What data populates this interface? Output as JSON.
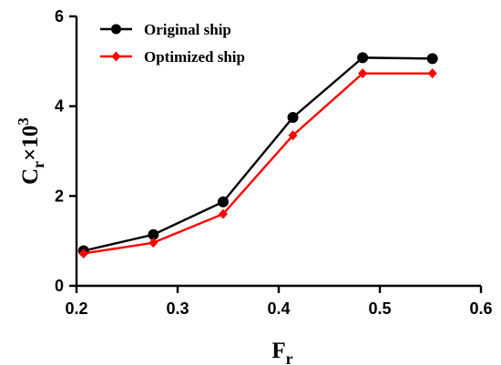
{
  "chart_data": {
    "type": "line",
    "xlabel": "F",
    "xlabel_sub": "r",
    "ylabel": "C",
    "ylabel_sub": "r",
    "ylabel_suffix": "×10",
    "ylabel_sup": "3",
    "xlim": [
      0.2,
      0.6
    ],
    "ylim": [
      0,
      6
    ],
    "xticks": [
      "0.2",
      "0.3",
      "0.4",
      "0.5",
      "0.6"
    ],
    "yticks": [
      "0",
      "2",
      "4",
      "6"
    ],
    "xtick_values": [
      0.2,
      0.3,
      0.4,
      0.5,
      0.6
    ],
    "ytick_values": [
      0,
      2,
      4,
      6
    ],
    "grid": false,
    "legend_position": "top-left",
    "x": [
      0.207,
      0.276,
      0.345,
      0.414,
      0.483,
      0.552
    ],
    "series": [
      {
        "name": "Original ship",
        "color": "#000000",
        "marker": "circle",
        "values": [
          0.78,
          1.14,
          1.87,
          3.75,
          5.08,
          5.06
        ]
      },
      {
        "name": "Optimized ship",
        "color": "#ff0000",
        "marker": "diamond",
        "values": [
          0.72,
          0.96,
          1.6,
          3.35,
          4.73,
          4.73
        ]
      }
    ]
  }
}
